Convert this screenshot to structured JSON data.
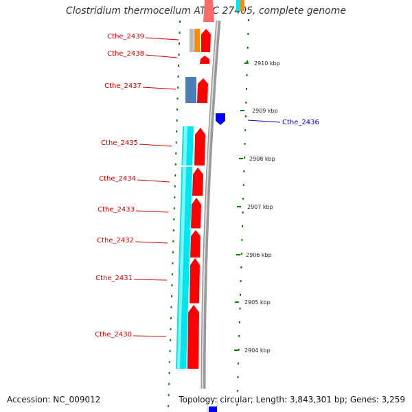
{
  "title": "Clostridium thermocellum ATCC 27405, complete genome",
  "footer": {
    "accession": "Accession: NC_009012",
    "summary": "Topology: circular; Length: 3,843,301 bp; Genes: 3,259"
  },
  "colors": {
    "cds": "#ff0000",
    "orf": "#00e5ee",
    "reverse_gene": "#0000ff",
    "misc_a": "#ff8c00",
    "misc_b": "#4a7fb5",
    "label_red": "#cc0000",
    "label_blue": "#0000cc",
    "tick": "#0a7a0a"
  },
  "ticks": [
    "2910 kbp",
    "2909 kbp",
    "2908 kbp",
    "2907 kbp",
    "2906 kbp",
    "2905 kbp",
    "2904 kbp"
  ],
  "genes": [
    {
      "name": "Cthe_2439",
      "color": "label_red"
    },
    {
      "name": "Cthe_2438",
      "color": "label_red"
    },
    {
      "name": "Cthe_2437",
      "color": "label_red"
    },
    {
      "name": "Cthe_2436",
      "color": "label_blue"
    },
    {
      "name": "Cthe_2435",
      "color": "label_red"
    },
    {
      "name": "Cthe_2434",
      "color": "label_red"
    },
    {
      "name": "Cthe_2433",
      "color": "label_red"
    },
    {
      "name": "Cthe_2432",
      "color": "label_red"
    },
    {
      "name": "Cthe_2431",
      "color": "label_red"
    },
    {
      "name": "Cthe_2430",
      "color": "label_red"
    }
  ]
}
